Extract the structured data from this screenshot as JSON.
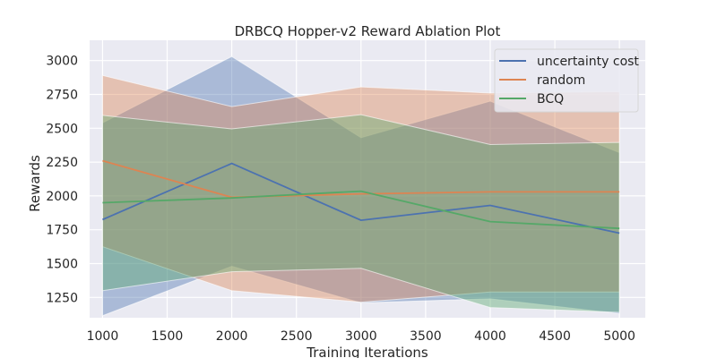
{
  "chart_data": {
    "type": "line",
    "title": "DRBCQ Hopper-v2 Reward Ablation Plot",
    "xlabel": "Training Iterations",
    "ylabel": "Rewards",
    "x": [
      1000,
      2000,
      3000,
      4000,
      5000
    ],
    "xlim": [
      900,
      5200
    ],
    "ylim": [
      1100,
      3150
    ],
    "x_ticks": [
      1000,
      1500,
      2000,
      2500,
      3000,
      3500,
      4000,
      4500,
      5000
    ],
    "y_ticks": [
      1250,
      1500,
      1750,
      2000,
      2250,
      2500,
      2750,
      3000
    ],
    "grid": true,
    "legend_position": "top-right",
    "series": [
      {
        "name": "uncertainty cost",
        "color": "#4c72b0",
        "values": [
          1825,
          2240,
          1820,
          1930,
          1725
        ],
        "upper": [
          2540,
          3030,
          2430,
          2700,
          2320
        ],
        "lower": [
          1115,
          1480,
          1210,
          1240,
          1130
        ]
      },
      {
        "name": "random",
        "color": "#dd8452",
        "values": [
          2260,
          1990,
          2015,
          2030,
          2030
        ],
        "upper": [
          2890,
          2660,
          2805,
          2760,
          2770
        ],
        "lower": [
          1625,
          1300,
          1215,
          1290,
          1290
        ]
      },
      {
        "name": "BCQ",
        "color": "#55a868",
        "values": [
          1950,
          1985,
          2035,
          1810,
          1760
        ],
        "upper": [
          2595,
          2495,
          2600,
          2380,
          2395
        ],
        "lower": [
          1300,
          1440,
          1465,
          1175,
          1140
        ]
      }
    ]
  }
}
